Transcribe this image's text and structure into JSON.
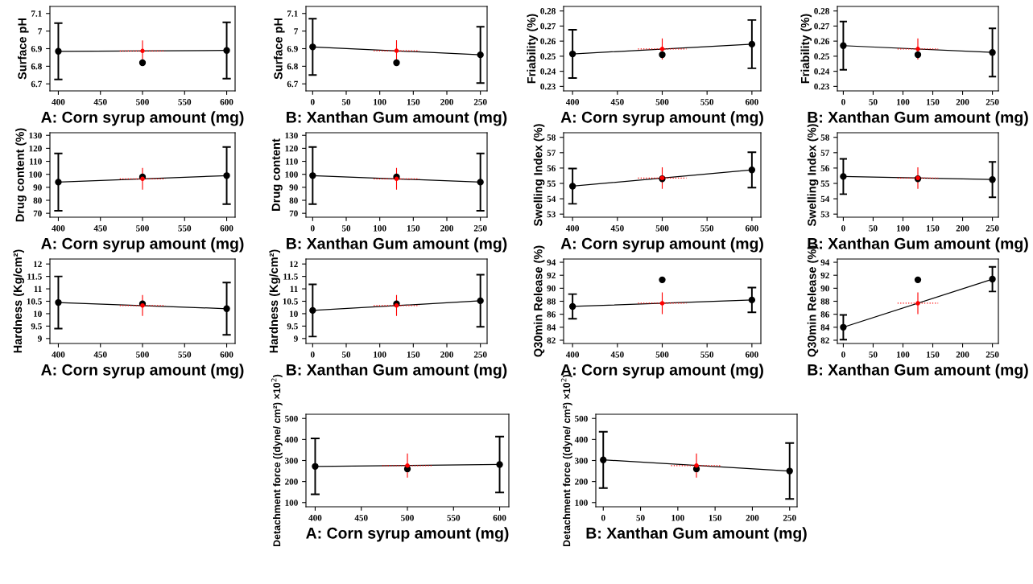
{
  "chart_data": [
    {
      "type": "line",
      "xlabel": "A: Corn syrup amount (mg)",
      "ylabel": "Surface pH",
      "xlim": [
        390,
        610
      ],
      "xticks": [
        400,
        450,
        500,
        550,
        600
      ],
      "ylim": [
        6.66,
        7.14
      ],
      "yticks": [
        6.7,
        6.8,
        6.9,
        7,
        7.1
      ],
      "series": [
        {
          "type": "line",
          "color": "#000000",
          "marker": "circle",
          "x": [
            400,
            600
          ],
          "values": [
            6.885,
            6.89
          ],
          "errors": [
            0.16,
            0.16
          ]
        },
        {
          "type": "scatter",
          "color": "#ff0000",
          "marker": "circle",
          "x": [
            500
          ],
          "values": [
            6.887
          ],
          "errors": [
            0.057
          ],
          "xerrors": [
            27
          ]
        },
        {
          "type": "scatter",
          "color": "#000000",
          "marker": "circle",
          "x": [
            500
          ],
          "values": [
            6.82
          ]
        }
      ]
    },
    {
      "type": "line",
      "xlabel": "B: Xanthan Gum amount (mg)",
      "ylabel": "Surface pH",
      "xlim": [
        -10,
        260
      ],
      "xticks": [
        0,
        50,
        100,
        150,
        200,
        250
      ],
      "ylim": [
        6.66,
        7.14
      ],
      "yticks": [
        6.7,
        6.8,
        6.9,
        7,
        7.1
      ],
      "series": [
        {
          "type": "line",
          "color": "#000000",
          "marker": "circle",
          "x": [
            0,
            250
          ],
          "values": [
            6.91,
            6.865
          ],
          "errors": [
            0.16,
            0.16
          ]
        },
        {
          "type": "scatter",
          "color": "#ff0000",
          "marker": "circle",
          "x": [
            125
          ],
          "values": [
            6.888
          ],
          "errors": [
            0.057
          ],
          "xerrors": [
            34
          ]
        },
        {
          "type": "scatter",
          "color": "#000000",
          "marker": "circle",
          "x": [
            125
          ],
          "values": [
            6.82
          ]
        }
      ]
    },
    {
      "type": "line",
      "xlabel": "A: Corn syrup amount (mg)",
      "ylabel": "Friability (%)",
      "xlim": [
        390,
        610
      ],
      "xticks": [
        400,
        450,
        500,
        550,
        600
      ],
      "ylim": [
        0.227,
        0.283
      ],
      "yticks": [
        0.23,
        0.24,
        0.25,
        0.26,
        0.27,
        0.28
      ],
      "series": [
        {
          "type": "line",
          "color": "#000000",
          "marker": "circle",
          "x": [
            400,
            600
          ],
          "values": [
            0.2515,
            0.258
          ],
          "errors": [
            0.016,
            0.016
          ]
        },
        {
          "type": "scatter",
          "color": "#ff0000",
          "marker": "circle",
          "x": [
            500
          ],
          "values": [
            0.2548
          ],
          "errors": [
            0.0067
          ],
          "xerrors": [
            27
          ]
        },
        {
          "type": "scatter",
          "color": "#000000",
          "marker": "circle",
          "x": [
            500
          ],
          "values": [
            0.251
          ]
        }
      ]
    },
    {
      "type": "line",
      "xlabel": "B: Xanthan Gum amount (mg)",
      "ylabel": "Friability (%)",
      "xlim": [
        -10,
        260
      ],
      "xticks": [
        0,
        50,
        100,
        150,
        200,
        250
      ],
      "ylim": [
        0.227,
        0.283
      ],
      "yticks": [
        0.23,
        0.24,
        0.25,
        0.26,
        0.27,
        0.28
      ],
      "series": [
        {
          "type": "line",
          "color": "#000000",
          "marker": "circle",
          "x": [
            0,
            250
          ],
          "values": [
            0.257,
            0.2525
          ],
          "errors": [
            0.016,
            0.016
          ]
        },
        {
          "type": "scatter",
          "color": "#ff0000",
          "marker": "circle",
          "x": [
            125
          ],
          "values": [
            0.2548
          ],
          "errors": [
            0.0067
          ],
          "xerrors": [
            34
          ]
        },
        {
          "type": "scatter",
          "color": "#000000",
          "marker": "circle",
          "x": [
            125
          ],
          "values": [
            0.251
          ]
        }
      ]
    },
    {
      "type": "line",
      "xlabel": "A: Corn syrup amount (mg)",
      "ylabel": "Drug content (%)",
      "xlim": [
        390,
        610
      ],
      "xticks": [
        400,
        450,
        500,
        550,
        600
      ],
      "ylim": [
        67,
        132
      ],
      "yticks": [
        70,
        80,
        90,
        100,
        110,
        120,
        130
      ],
      "series": [
        {
          "type": "line",
          "color": "#000000",
          "marker": "circle",
          "x": [
            400,
            600
          ],
          "values": [
            94,
            99
          ],
          "errors": [
            22,
            22
          ]
        },
        {
          "type": "scatter",
          "color": "#ff0000",
          "marker": "circle",
          "x": [
            500
          ],
          "values": [
            96.5
          ],
          "errors": [
            8
          ],
          "xerrors": [
            27
          ]
        },
        {
          "type": "scatter",
          "color": "#000000",
          "marker": "circle",
          "x": [
            500
          ],
          "values": [
            98
          ]
        }
      ]
    },
    {
      "type": "line",
      "xlabel": "B: Xanthan Gum amount (mg)",
      "ylabel": "Drug content",
      "xlim": [
        -10,
        260
      ],
      "xticks": [
        0,
        50,
        100,
        150,
        200,
        250
      ],
      "ylim": [
        67,
        132
      ],
      "yticks": [
        70,
        80,
        90,
        100,
        110,
        120,
        130
      ],
      "series": [
        {
          "type": "line",
          "color": "#000000",
          "marker": "circle",
          "x": [
            0,
            250
          ],
          "values": [
            99,
            94
          ],
          "errors": [
            22,
            22
          ]
        },
        {
          "type": "scatter",
          "color": "#ff0000",
          "marker": "circle",
          "x": [
            125
          ],
          "values": [
            96.5
          ],
          "errors": [
            8
          ],
          "xerrors": [
            34
          ]
        },
        {
          "type": "scatter",
          "color": "#000000",
          "marker": "circle",
          "x": [
            125
          ],
          "values": [
            98
          ]
        }
      ]
    },
    {
      "type": "line",
      "xlabel": "A: Corn syrup amount (mg)",
      "ylabel": "Swelling Index (%)",
      "xlim": [
        390,
        610
      ],
      "xticks": [
        400,
        450,
        500,
        550,
        600
      ],
      "ylim": [
        52.8,
        58.3
      ],
      "yticks": [
        53,
        54,
        55,
        56,
        57,
        58
      ],
      "series": [
        {
          "type": "line",
          "color": "#000000",
          "marker": "circle",
          "x": [
            400,
            600
          ],
          "values": [
            54.82,
            55.88
          ],
          "errors": [
            1.15,
            1.15
          ]
        },
        {
          "type": "scatter",
          "color": "#ff0000",
          "marker": "circle",
          "x": [
            500
          ],
          "values": [
            55.35
          ],
          "errors": [
            0.67
          ],
          "xerrors": [
            27
          ]
        },
        {
          "type": "scatter",
          "color": "#000000",
          "marker": "circle",
          "x": [
            500
          ],
          "values": [
            55.3
          ]
        }
      ]
    },
    {
      "type": "line",
      "xlabel": "B: Xanthan Gum amount (mg)",
      "ylabel": "Swelling Index (%)",
      "xlim": [
        -10,
        260
      ],
      "xticks": [
        0,
        50,
        100,
        150,
        200,
        250
      ],
      "ylim": [
        52.8,
        58.3
      ],
      "yticks": [
        53,
        54,
        55,
        56,
        57,
        58
      ],
      "series": [
        {
          "type": "line",
          "color": "#000000",
          "marker": "circle",
          "x": [
            0,
            250
          ],
          "values": [
            55.45,
            55.25
          ],
          "errors": [
            1.15,
            1.15
          ]
        },
        {
          "type": "scatter",
          "color": "#ff0000",
          "marker": "circle",
          "x": [
            125
          ],
          "values": [
            55.35
          ],
          "errors": [
            0.67
          ],
          "xerrors": [
            34
          ]
        },
        {
          "type": "scatter",
          "color": "#000000",
          "marker": "circle",
          "x": [
            125
          ],
          "values": [
            55.3
          ]
        }
      ]
    },
    {
      "type": "line",
      "xlabel": "A: Corn syrup amount (mg)",
      "ylabel": "Hardness (Kg/cm²)",
      "xlim": [
        390,
        610
      ],
      "xticks": [
        400,
        450,
        500,
        550,
        600
      ],
      "ylim": [
        8.8,
        12.2
      ],
      "yticks": [
        9,
        9.5,
        10,
        10.5,
        11,
        11.5,
        12
      ],
      "series": [
        {
          "type": "line",
          "color": "#000000",
          "marker": "circle",
          "x": [
            400,
            600
          ],
          "values": [
            10.45,
            10.2
          ],
          "errors": [
            1.05,
            1.05
          ]
        },
        {
          "type": "scatter",
          "color": "#ff0000",
          "marker": "circle",
          "x": [
            500
          ],
          "values": [
            10.33
          ],
          "errors": [
            0.4
          ],
          "xerrors": [
            27
          ]
        },
        {
          "type": "scatter",
          "color": "#000000",
          "marker": "circle",
          "x": [
            500
          ],
          "values": [
            10.4
          ]
        }
      ]
    },
    {
      "type": "line",
      "xlabel": "B: Xanthan Gum amount (mg)",
      "ylabel": "Hardness (Kg/cm²)",
      "xlim": [
        -10,
        260
      ],
      "xticks": [
        0,
        50,
        100,
        150,
        200,
        250
      ],
      "ylim": [
        8.8,
        12.2
      ],
      "yticks": [
        9,
        9.5,
        10,
        10.5,
        11,
        11.5,
        12
      ],
      "series": [
        {
          "type": "line",
          "color": "#000000",
          "marker": "circle",
          "x": [
            0,
            250
          ],
          "values": [
            10.13,
            10.52
          ],
          "errors": [
            1.05,
            1.05
          ]
        },
        {
          "type": "scatter",
          "color": "#ff0000",
          "marker": "circle",
          "x": [
            125
          ],
          "values": [
            10.33
          ],
          "errors": [
            0.4
          ],
          "xerrors": [
            34
          ]
        },
        {
          "type": "scatter",
          "color": "#000000",
          "marker": "circle",
          "x": [
            125
          ],
          "values": [
            10.4
          ]
        }
      ]
    },
    {
      "type": "line",
      "xlabel": "A: Corn syrup amount (mg)",
      "ylabel": "Q30min Release (%)",
      "xlim": [
        390,
        610
      ],
      "xticks": [
        400,
        450,
        500,
        550,
        600
      ],
      "ylim": [
        81.5,
        94.5
      ],
      "yticks": [
        82,
        84,
        86,
        88,
        90,
        92,
        94
      ],
      "series": [
        {
          "type": "line",
          "color": "#000000",
          "marker": "circle",
          "x": [
            400,
            600
          ],
          "values": [
            87.2,
            88.2
          ],
          "errors": [
            1.9,
            1.9
          ]
        },
        {
          "type": "scatter",
          "color": "#ff0000",
          "marker": "circle",
          "x": [
            500
          ],
          "values": [
            87.7
          ],
          "errors": [
            1.6
          ],
          "xerrors": [
            27
          ]
        },
        {
          "type": "scatter",
          "color": "#000000",
          "marker": "circle",
          "x": [
            500
          ],
          "values": [
            91.3
          ]
        }
      ]
    },
    {
      "type": "line",
      "xlabel": "B: Xanthan Gum amount (mg)",
      "ylabel": "Q30min Release (%)",
      "xlim": [
        -10,
        260
      ],
      "xticks": [
        0,
        50,
        100,
        150,
        200,
        250
      ],
      "ylim": [
        81.5,
        94.5
      ],
      "yticks": [
        82,
        84,
        86,
        88,
        90,
        92,
        94
      ],
      "series": [
        {
          "type": "line",
          "color": "#000000",
          "marker": "circle",
          "x": [
            0,
            250
          ],
          "values": [
            84.0,
            91.4
          ],
          "errors": [
            1.9,
            1.9
          ]
        },
        {
          "type": "scatter",
          "color": "#ff0000",
          "marker": "circle",
          "x": [
            125
          ],
          "values": [
            87.7
          ],
          "errors": [
            1.6
          ],
          "xerrors": [
            34
          ]
        },
        {
          "type": "scatter",
          "color": "#000000",
          "marker": "circle",
          "x": [
            125
          ],
          "values": [
            91.3
          ]
        }
      ]
    },
    {
      "type": "line",
      "xlabel": "A: Corn syrup amount (mg)",
      "ylabel": "Detachment force ((dyne/ cm²) ×10$^{2}$)",
      "xlim": [
        390,
        610
      ],
      "xticks": [
        400,
        450,
        500,
        550,
        600
      ],
      "ylim": [
        80,
        520
      ],
      "yticks": [
        100,
        200,
        300,
        400,
        500
      ],
      "series": [
        {
          "type": "line",
          "color": "#000000",
          "marker": "circle",
          "x": [
            400,
            600
          ],
          "values": [
            272,
            281
          ],
          "errors": [
            133,
            133
          ]
        },
        {
          "type": "scatter",
          "color": "#ff0000",
          "marker": "circle",
          "x": [
            500
          ],
          "values": [
            276
          ],
          "errors": [
            55
          ],
          "xerrors": [
            27
          ]
        },
        {
          "type": "scatter",
          "color": "#000000",
          "marker": "circle",
          "x": [
            500
          ],
          "values": [
            260
          ]
        }
      ]
    },
    {
      "type": "line",
      "xlabel": "B: Xanthan Gum amount (mg)",
      "ylabel": "Detachment force ((dyne/ cm²) ×10$^{2}$)",
      "xlim": [
        -10,
        260
      ],
      "xticks": [
        0,
        50,
        100,
        150,
        200,
        250
      ],
      "ylim": [
        80,
        520
      ],
      "yticks": [
        100,
        200,
        300,
        400,
        500
      ],
      "series": [
        {
          "type": "line",
          "color": "#000000",
          "marker": "circle",
          "x": [
            0,
            250
          ],
          "values": [
            303,
            250
          ],
          "errors": [
            134,
            133
          ]
        },
        {
          "type": "scatter",
          "color": "#ff0000",
          "marker": "circle",
          "x": [
            125
          ],
          "values": [
            276
          ],
          "errors": [
            55
          ],
          "xerrors": [
            34
          ]
        },
        {
          "type": "scatter",
          "color": "#000000",
          "marker": "circle",
          "x": [
            125
          ],
          "values": [
            260
          ]
        }
      ]
    }
  ]
}
